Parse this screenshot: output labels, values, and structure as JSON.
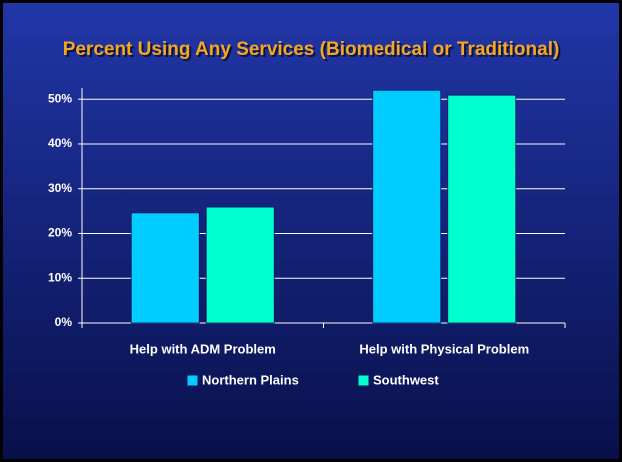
{
  "chart_data": {
    "type": "bar",
    "title": "Percent Using Any Services (Biomedical or Traditional)",
    "categories": [
      "Help with ADM Problem",
      "Help with Physical Problem"
    ],
    "series": [
      {
        "name": "Northern Plains",
        "color": "#00ccff",
        "values": [
          24.6,
          52
        ]
      },
      {
        "name": "Southwest",
        "color": "#00ffcc",
        "values": [
          25.9,
          50.9
        ]
      }
    ],
    "ylim": [
      0,
      52.5
    ],
    "yticks": [
      {
        "value": 0,
        "label": "0%"
      },
      {
        "value": 10,
        "label": "10%"
      },
      {
        "value": 20,
        "label": "20%"
      },
      {
        "value": 30,
        "label": "30%"
      },
      {
        "value": 40,
        "label": "40%"
      },
      {
        "value": 50,
        "label": "50%"
      }
    ],
    "grid": true,
    "legend": "bottom"
  }
}
